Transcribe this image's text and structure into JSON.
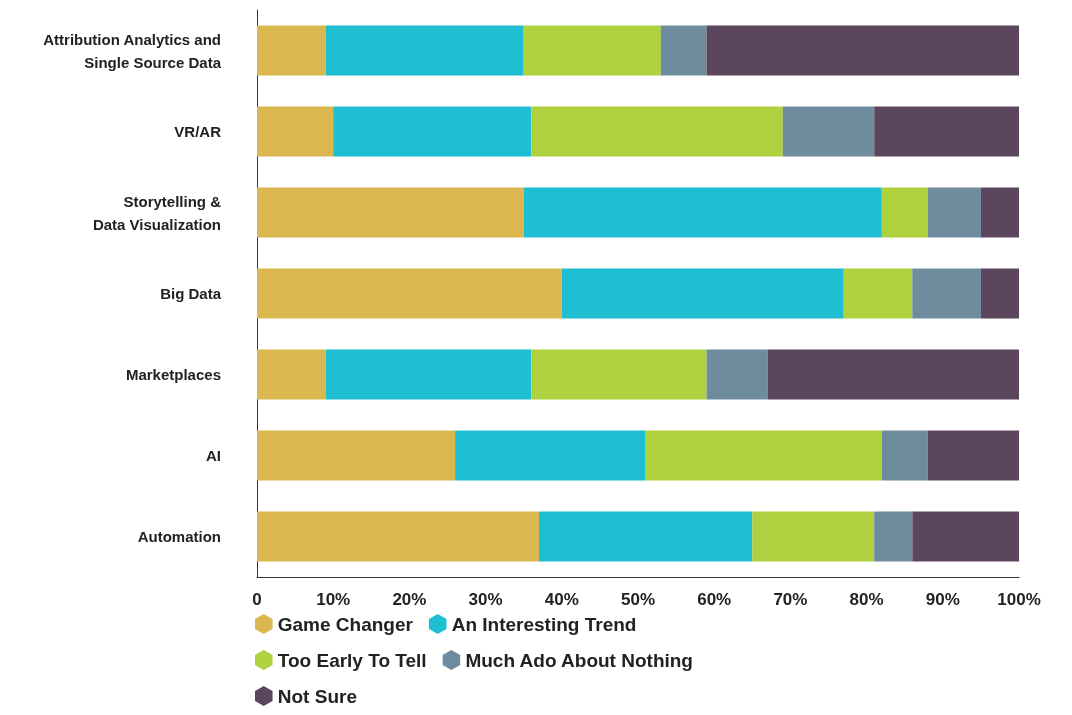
{
  "chart_data": {
    "type": "bar",
    "orientation": "horizontal",
    "stacked": true,
    "legend": "bottom",
    "grid": false,
    "categories": [
      "Attribution Analytics and\nSingle Source Data",
      "VR/AR",
      "Storytelling &\nData Visualization",
      "Big Data",
      "Marketplaces",
      "AI",
      "Automation"
    ],
    "series": [
      {
        "name": "Game Changer",
        "color": "#dbb84f",
        "values": [
          9,
          10,
          35,
          40,
          9,
          26,
          37
        ]
      },
      {
        "name": "An Interesting Trend",
        "color": "#1fbfd3",
        "values": [
          26,
          26,
          47,
          37,
          27,
          25,
          28
        ]
      },
      {
        "name": "Too Early To Tell",
        "color": "#afd03f",
        "values": [
          18,
          33,
          6,
          9,
          23,
          31,
          16
        ]
      },
      {
        "name": "Much Ado About Nothing",
        "color": "#6f8c9e",
        "values": [
          6,
          12,
          7,
          9,
          8,
          6,
          5
        ]
      },
      {
        "name": "Not Sure",
        "color": "#5c465e",
        "values": [
          41,
          19,
          5,
          5,
          33,
          12,
          14
        ]
      }
    ],
    "xlim": [
      0,
      100
    ],
    "xticks": [
      0,
      {
        "value": 10,
        "label": "10%"
      },
      {
        "value": 20,
        "label": "20%"
      },
      {
        "value": 30,
        "label": "30%"
      },
      {
        "value": 40,
        "label": "40%"
      },
      {
        "value": 50,
        "label": "50%"
      },
      {
        "value": 60,
        "label": "60%"
      },
      {
        "value": 70,
        "label": "70%"
      },
      {
        "value": 80,
        "label": "80%"
      },
      {
        "value": 90,
        "label": "90%"
      },
      {
        "value": 100,
        "label": "100%"
      }
    ]
  }
}
